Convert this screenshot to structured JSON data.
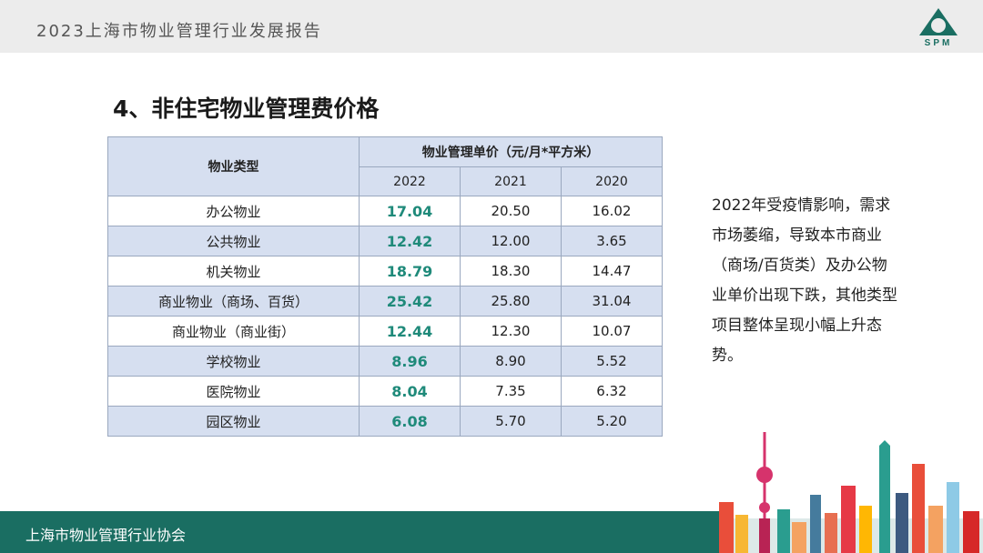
{
  "header": {
    "title": "2023上海市物业管理行业发展报告",
    "logo_text": "SPM",
    "accent_color": "#1a6e62"
  },
  "section_title": "4、非住宅物业管理费价格",
  "table": {
    "type_header": "物业类型",
    "unit_header": "物业管理单价（元/月*平方米）",
    "years": [
      "2022",
      "2021",
      "2020"
    ],
    "rows": [
      {
        "type": "办公物业",
        "v2022": "17.04",
        "v2021": "20.50",
        "v2020": "16.02"
      },
      {
        "type": "公共物业",
        "v2022": "12.42",
        "v2021": "12.00",
        "v2020": "3.65"
      },
      {
        "type": "机关物业",
        "v2022": "18.79",
        "v2021": "18.30",
        "v2020": "14.47"
      },
      {
        "type": "商业物业（商场、百货）",
        "v2022": "25.42",
        "v2021": "25.80",
        "v2020": "31.04"
      },
      {
        "type": "商业物业（商业街）",
        "v2022": "12.44",
        "v2021": "12.30",
        "v2020": "10.07"
      },
      {
        "type": "学校物业",
        "v2022": "8.96",
        "v2021": "8.90",
        "v2020": "5.52"
      },
      {
        "type": "医院物业",
        "v2022": "8.04",
        "v2021": "7.35",
        "v2020": "6.32"
      },
      {
        "type": "园区物业",
        "v2022": "6.08",
        "v2021": "5.70",
        "v2020": "5.20"
      }
    ]
  },
  "summary_lines": [
    "2022年受疫情影响，需求",
    "市场萎缩，导致本市商业",
    "（商场/百货类）及办公物",
    "业单价出现下跌，其他类型",
    "项目整体呈现小幅上升态",
    "势。"
  ],
  "footer": {
    "org": "上海市物业管理行业协会"
  }
}
